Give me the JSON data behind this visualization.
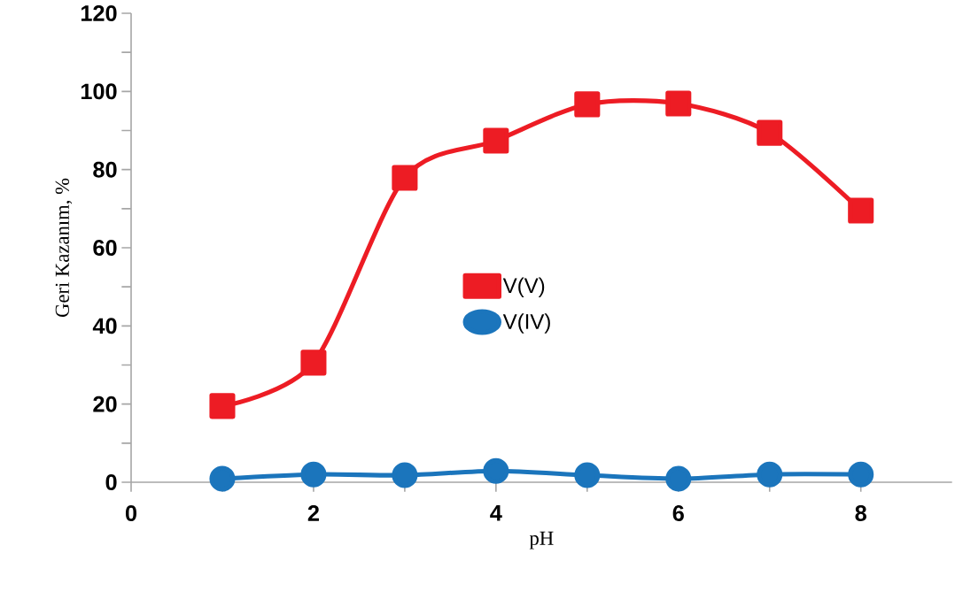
{
  "chart_data": {
    "type": "line",
    "xlabel": "pH",
    "ylabel": "Geri Kazanım, %",
    "x": [
      1,
      2,
      3,
      4,
      5,
      6,
      7,
      8
    ],
    "series": [
      {
        "name": "V(V)",
        "color": "#ed1c24",
        "marker": "square",
        "values": [
          19.5,
          30.6,
          77.9,
          87.4,
          96.7,
          96.9,
          89.4,
          69.5
        ]
      },
      {
        "name": "V(IV)",
        "color": "#1b75bc",
        "marker": "circle",
        "values": [
          0.9,
          2,
          1.8,
          2.9,
          1.8,
          0.9,
          2,
          2
        ]
      }
    ],
    "xlim": [
      0,
      9
    ],
    "xticks": [
      0,
      2,
      4,
      6,
      8
    ],
    "ylim": [
      0,
      120
    ],
    "yticks": [
      0,
      20,
      40,
      60,
      80,
      100,
      120
    ],
    "grid": false,
    "legend": "center"
  }
}
